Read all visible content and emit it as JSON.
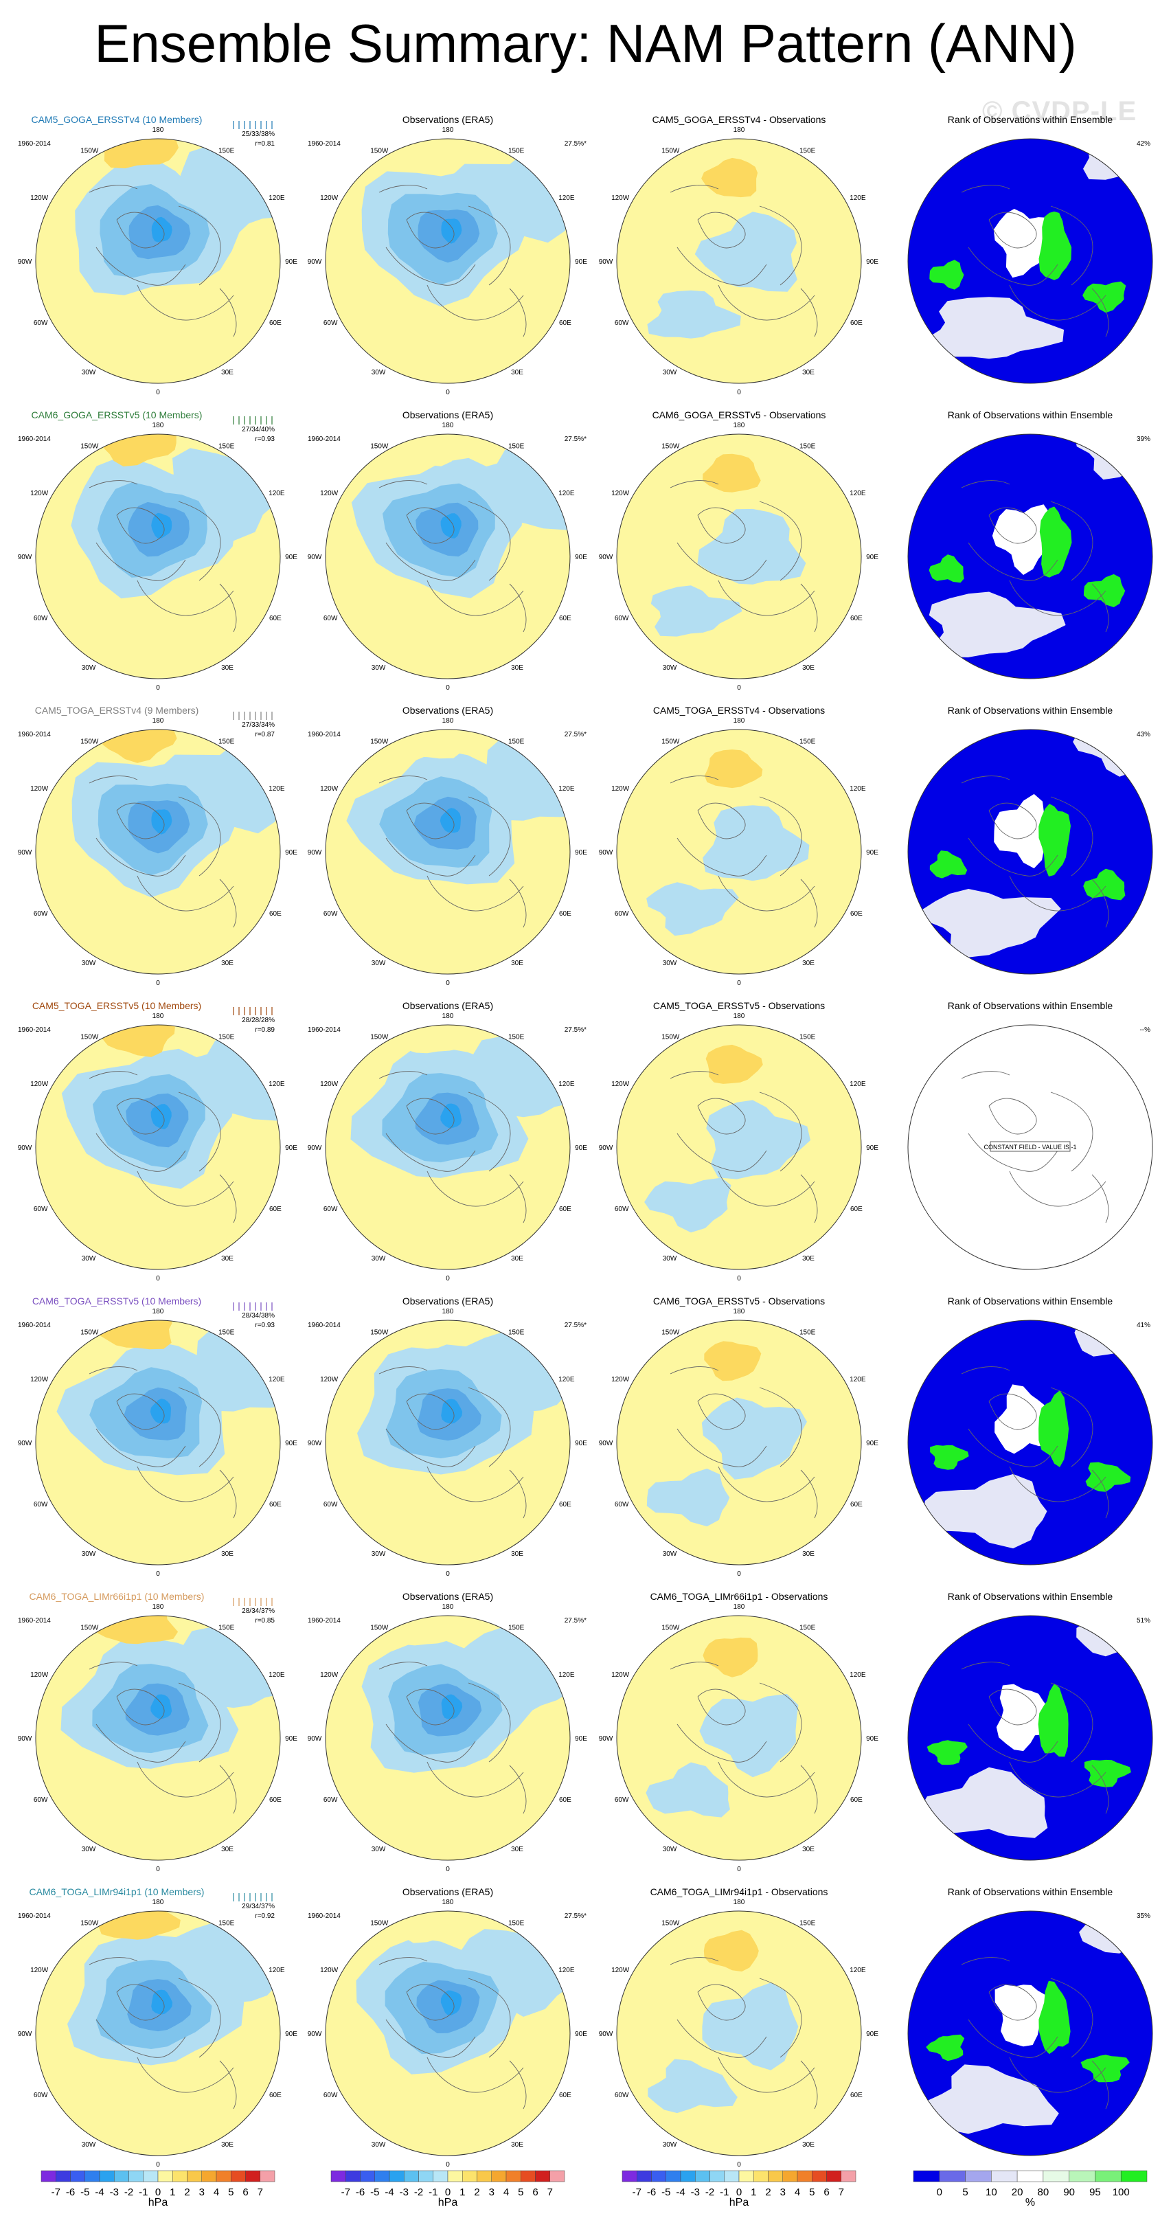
{
  "title": "Ensemble Summary: NAM Pattern (ANN)",
  "watermark": "© CVDP-LE",
  "period": "1960-2014",
  "obs_title": "Observations (ERA5)",
  "obs_pct": "27.5%*",
  "rank_title": "Rank of Observations within Ensemble",
  "constant_field": "CONSTANT FIELD - VALUE IS -1",
  "lon_labels": [
    "180",
    "150W",
    "150E",
    "120W",
    "120E",
    "90W",
    "90E",
    "60W",
    "60E",
    "30W",
    "30E",
    "0"
  ],
  "colors": {
    "neg_light": "#b3def2",
    "neg_mid": "#7fc4ec",
    "neg_dark": "#5aa8e6",
    "neg_core": "#2aa2ef",
    "pos_light": "#fdf7a0",
    "pos_mid": "#fcd95f",
    "pos_dark": "#f5b72d",
    "pos_core": "#f0902a",
    "rank_blue": "#0000e6",
    "rank_green": "#22ee22",
    "rank_pale": "#e4e6f6"
  },
  "rows": [
    {
      "model_title": "CAM5_GOGA_ERSSTv4 (10 Members)",
      "title_color": "#1f7ab5",
      "stats": "25/33/38%",
      "corr": "r=0.81",
      "diff_title": "CAM5_GOGA_ERSSTv4 - Observations",
      "rank_pct": "42%",
      "constant": false
    },
    {
      "model_title": "CAM6_GOGA_ERSSTv5 (10 Members)",
      "title_color": "#2e7d3a",
      "stats": "27/34/40%",
      "corr": "r=0.93",
      "diff_title": "CAM6_GOGA_ERSSTv5 - Observations",
      "rank_pct": "39%",
      "constant": false
    },
    {
      "model_title": "CAM5_TOGA_ERSSTv4 (9 Members)",
      "title_color": "#808080",
      "stats": "27/33/34%",
      "corr": "r=0.87",
      "diff_title": "CAM5_TOGA_ERSSTv4 - Observations",
      "rank_pct": "43%",
      "constant": false
    },
    {
      "model_title": "CAM5_TOGA_ERSSTv5 (10 Members)",
      "title_color": "#a0480d",
      "stats": "28/28/28%",
      "corr": "r=0.89",
      "diff_title": "CAM5_TOGA_ERSSTv5 - Observations",
      "rank_pct": "--%",
      "constant": true
    },
    {
      "model_title": "CAM6_TOGA_ERSSTv5 (10 Members)",
      "title_color": "#7a4fc0",
      "stats": "28/34/38%",
      "corr": "r=0.93",
      "diff_title": "CAM6_TOGA_ERSSTv5 - Observations",
      "rank_pct": "41%",
      "constant": false
    },
    {
      "model_title": "CAM6_TOGA_LIMr66i1p1 (10 Members)",
      "title_color": "#d59a5d",
      "stats": "28/34/37%",
      "corr": "r=0.85",
      "diff_title": "CAM6_TOGA_LIMr66i1p1 - Observations",
      "rank_pct": "51%",
      "constant": false
    },
    {
      "model_title": "CAM6_TOGA_LIMr94i1p1 (10 Members)",
      "title_color": "#2a8aa0",
      "stats": "29/34/37%",
      "corr": "r=0.92",
      "diff_title": "CAM6_TOGA_LIMr94i1p1 - Observations",
      "rank_pct": "35%",
      "constant": false
    }
  ],
  "chart_data": {
    "type": "heatmap",
    "description_free": true,
    "colorbar_hpa": {
      "ticks": [
        "-7",
        "-6",
        "-5",
        "-4",
        "-3",
        "-2",
        "-1",
        "0",
        "1",
        "2",
        "3",
        "4",
        "5",
        "6",
        "7"
      ],
      "unit": "hPa",
      "colors": [
        "#7d2ae0",
        "#3d3be0",
        "#3a5ef0",
        "#2f7fee",
        "#2aa2ef",
        "#5cc0f0",
        "#8fd6f4",
        "#b8e6f6",
        "#fdf7a0",
        "#fce36c",
        "#f9c84a",
        "#f5a72f",
        "#f0802a",
        "#e64d22",
        "#d1201e",
        "#f4a0a8"
      ]
    },
    "colorbar_rank": {
      "ticks": [
        "0",
        "5",
        "10",
        "20",
        "80",
        "90",
        "95",
        "100"
      ],
      "unit": "%",
      "colors": [
        "#0000e6",
        "#6a6ae8",
        "#a4a6ee",
        "#e4e6f6",
        "#ffffff",
        "#e6fae6",
        "#b9f5b9",
        "#79f079",
        "#22ee22"
      ]
    }
  }
}
